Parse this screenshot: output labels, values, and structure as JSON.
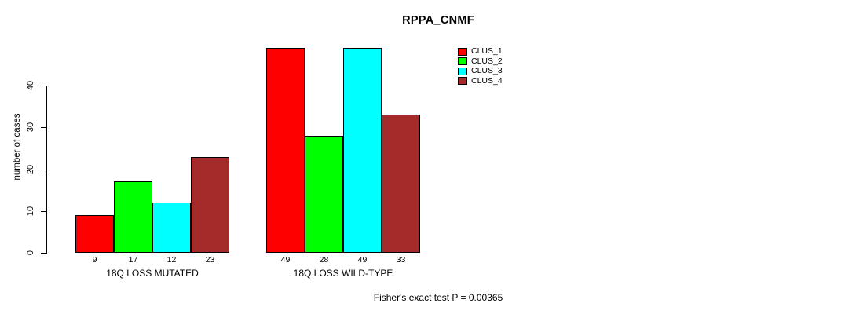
{
  "chart_data": {
    "type": "bar",
    "title": "RPPA_CNMF",
    "ylabel": "number of cases",
    "xlabel": "",
    "ylim": [
      0,
      40
    ],
    "yticks": [
      0,
      10,
      20,
      30,
      40
    ],
    "grid": false,
    "legend_position": "right",
    "categories": [
      "18Q LOSS MUTATED",
      "18Q LOSS WILD-TYPE"
    ],
    "series": [
      {
        "name": "CLUS_1",
        "color": "#ff0000",
        "values": [
          9,
          49
        ]
      },
      {
        "name": "CLUS_2",
        "color": "#00ff00",
        "values": [
          17,
          28
        ]
      },
      {
        "name": "CLUS_3",
        "color": "#00ffff",
        "values": [
          12,
          49
        ]
      },
      {
        "name": "CLUS_4",
        "color": "#a52a2a",
        "values": [
          23,
          33
        ]
      }
    ],
    "bar_value_labels": [
      [
        9,
        17,
        12,
        23
      ],
      [
        49,
        28,
        49,
        33
      ]
    ],
    "annotation": "Fisher's exact test P = 0.00365"
  }
}
